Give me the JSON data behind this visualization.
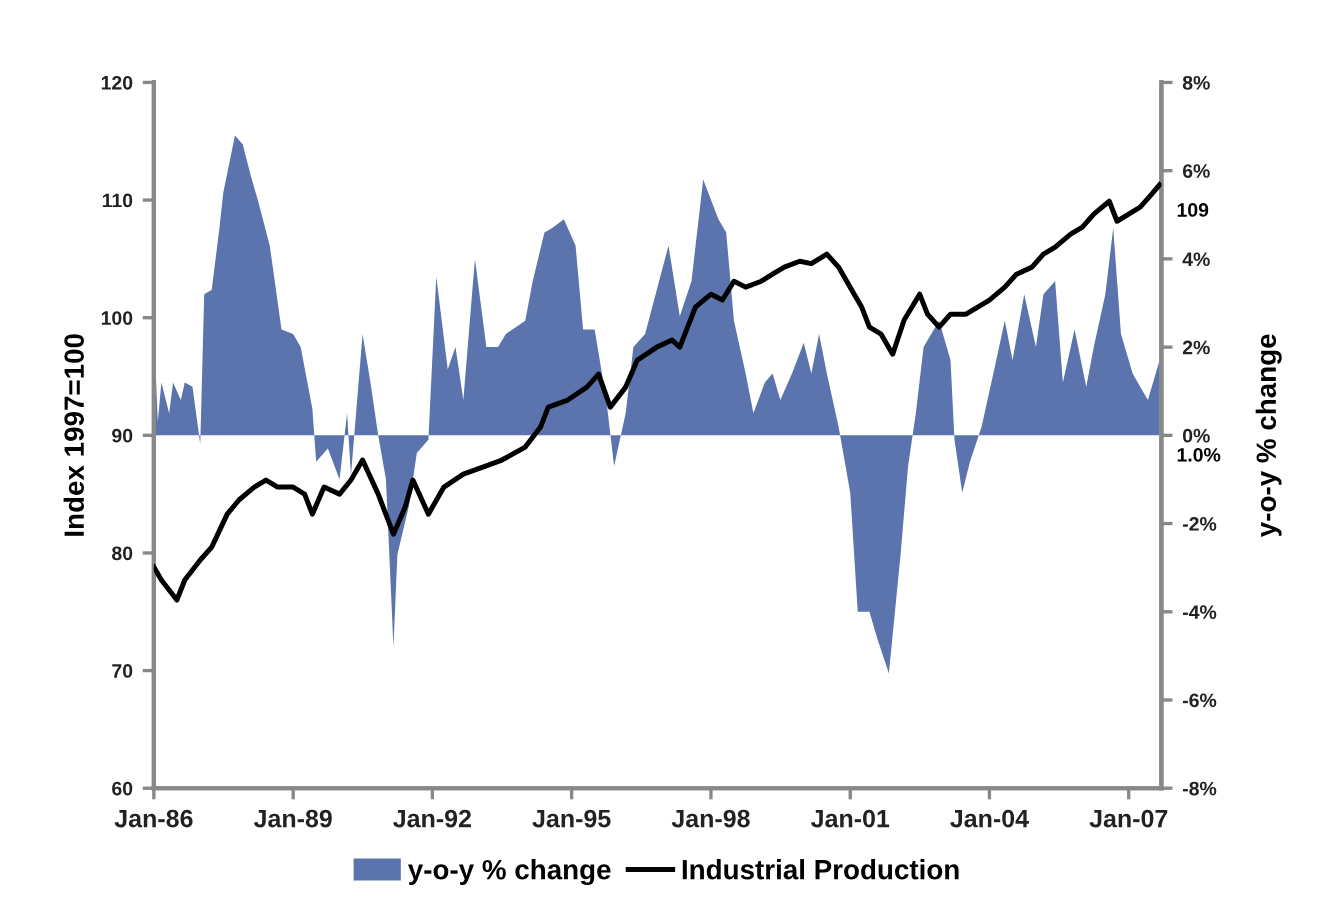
{
  "chart_data": {
    "type": "line",
    "ylabel": "Index 1997=100",
    "y2label": "y-o-y % change",
    "series": [
      {
        "name": "y-o-y % change",
        "type": "area",
        "axis": "y2",
        "color": "#5b74ad",
        "x": [
          "1986-01",
          "1986-02",
          "1986-03",
          "1986-05",
          "1986-06",
          "1986-08",
          "1986-09",
          "1986-11",
          "1987-01",
          "1987-02",
          "1987-04",
          "1987-06",
          "1987-07",
          "1987-10",
          "1987-12",
          "1988-02",
          "1988-04",
          "1988-07",
          "1988-10",
          "1989-01",
          "1989-03",
          "1989-06",
          "1989-07",
          "1989-10",
          "1990-01",
          "1990-03",
          "1990-04",
          "1990-07",
          "1990-09",
          "1990-11",
          "1991-01",
          "1991-03",
          "1991-04",
          "1991-07",
          "1991-09",
          "1991-12",
          "1992-02",
          "1992-05",
          "1992-07",
          "1992-09",
          "1992-12",
          "1993-03",
          "1993-06",
          "1993-08",
          "1994-01",
          "1994-03",
          "1994-06",
          "1994-08",
          "1994-11",
          "1995-02",
          "1995-04",
          "1995-07",
          "1995-10",
          "1995-12",
          "1996-03",
          "1996-05",
          "1996-08",
          "1996-11",
          "1997-02",
          "1997-05",
          "1997-08",
          "1997-11",
          "1998-03",
          "1998-05",
          "1998-07",
          "1998-10",
          "1998-12",
          "1999-03",
          "1999-05",
          "1999-07",
          "1999-10",
          "2000-01",
          "2000-03",
          "2000-05",
          "2000-07",
          "2000-10",
          "2001-01",
          "2001-03",
          "2001-06",
          "2001-08",
          "2001-11",
          "2002-02",
          "2002-04",
          "2002-06",
          "2002-08",
          "2002-12",
          "2003-03",
          "2003-04",
          "2003-06",
          "2003-08",
          "2003-11",
          "2004-02",
          "2004-05",
          "2004-07",
          "2004-10",
          "2005-01",
          "2005-03",
          "2005-06",
          "2005-08",
          "2005-11",
          "2006-02",
          "2006-04",
          "2006-07",
          "2006-09",
          "2006-11",
          "2007-02",
          "2007-04",
          "2007-06",
          "2007-09"
        ],
        "values": [
          2.4,
          0.3,
          1.2,
          0.5,
          1.2,
          0.8,
          1.2,
          1.1,
          -0.2,
          3.2,
          3.3,
          4.7,
          5.5,
          6.8,
          6.6,
          5.9,
          5.3,
          4.3,
          2.4,
          2.3,
          2.0,
          0.6,
          -0.6,
          -0.3,
          -1.0,
          0.5,
          -0.9,
          2.3,
          1.2,
          0,
          -1.0,
          -4.8,
          -2.7,
          -1.6,
          -0.4,
          -0.1,
          3.6,
          1.5,
          2.0,
          0.8,
          4.0,
          2.0,
          2.0,
          2.3,
          2.6,
          3.5,
          4.6,
          4.7,
          4.9,
          4.3,
          2.4,
          2.4,
          0.8,
          -0.7,
          0.5,
          2.0,
          2.3,
          3.3,
          4.3,
          2.7,
          3.5,
          5.8,
          4.9,
          4.6,
          2.6,
          1.4,
          0.5,
          1.2,
          1.4,
          0.8,
          1.4,
          2.1,
          1.4,
          2.3,
          1.4,
          0.2,
          -1.3,
          -4.0,
          -4.0,
          -4.6,
          -5.4,
          -2.7,
          -0.7,
          0.5,
          2.0,
          2.6,
          1.7,
          -0.1,
          -1.3,
          -0.6,
          0.2,
          1.4,
          2.6,
          1.7,
          3.2,
          2.0,
          3.2,
          3.5,
          1.2,
          2.4,
          1.1,
          2.0,
          3.2,
          4.7,
          2.3,
          1.4,
          1.1,
          0.8,
          1.7
        ]
      },
      {
        "name": "Industrial Production",
        "color": "#000000",
        "x": [
          "1986-01",
          "1986-03",
          "1986-07",
          "1986-09",
          "1987-01",
          "1987-04",
          "1987-08",
          "1987-11",
          "1988-03",
          "1988-06",
          "1988-09",
          "1989-01",
          "1989-04",
          "1989-06",
          "1989-09",
          "1990-01",
          "1990-04",
          "1990-07",
          "1990-11",
          "1991-03",
          "1991-06",
          "1991-08",
          "1991-12",
          "1992-04",
          "1992-09",
          "1993-02",
          "1993-07",
          "1994-01",
          "1994-05",
          "1994-07",
          "1994-12",
          "1995-05",
          "1995-08",
          "1995-11",
          "1996-03",
          "1996-06",
          "1996-11",
          "1997-03",
          "1997-05",
          "1997-09",
          "1998-01",
          "1998-04",
          "1998-07",
          "1998-10",
          "1999-02",
          "1999-05",
          "1999-08",
          "1999-12",
          "2000-03",
          "2000-07",
          "2000-10",
          "2001-02",
          "2001-04",
          "2001-06",
          "2001-09",
          "2001-12",
          "2002-03",
          "2002-07",
          "2002-09",
          "2002-12",
          "2003-03",
          "2003-07",
          "2003-10",
          "2004-01",
          "2004-05",
          "2004-08",
          "2004-12",
          "2005-03",
          "2005-06",
          "2005-10",
          "2006-01",
          "2006-04",
          "2006-08",
          "2006-10",
          "2007-01",
          "2007-04",
          "2007-07",
          "2007-09"
        ],
        "values": [
          78.8,
          77.7,
          76.0,
          77.7,
          79.4,
          80.5,
          83.3,
          84.5,
          85.6,
          86.2,
          85.6,
          85.6,
          85.0,
          83.3,
          85.6,
          85.0,
          86.2,
          87.9,
          85.0,
          81.6,
          83.9,
          86.2,
          83.3,
          85.6,
          86.7,
          87.3,
          87.9,
          89.0,
          90.7,
          92.4,
          93.0,
          94.1,
          95.2,
          92.4,
          94.1,
          96.4,
          97.5,
          98.1,
          97.5,
          100.9,
          102.0,
          101.5,
          103.1,
          102.6,
          103.1,
          103.7,
          104.3,
          104.8,
          104.6,
          105.4,
          104.3,
          102.0,
          100.9,
          99.2,
          98.6,
          96.9,
          99.8,
          102.0,
          100.3,
          99.2,
          100.3,
          100.3,
          100.9,
          101.5,
          102.6,
          103.7,
          104.3,
          105.4,
          106.0,
          107.1,
          107.7,
          108.8,
          109.9,
          108.2,
          108.8,
          109.4,
          110.5,
          111.3
        ]
      }
    ],
    "xlim": [
      "1986-01-01",
      "2007-09-15"
    ],
    "xticks": [
      {
        "value": "1986-01-01",
        "label": "Jan-86"
      },
      {
        "value": "1989-01-01",
        "label": "Jan-89"
      },
      {
        "value": "1992-01-01",
        "label": "Jan-92"
      },
      {
        "value": "1995-01-01",
        "label": "Jan-95"
      },
      {
        "value": "1998-01-01",
        "label": "Jan-98"
      },
      {
        "value": "2001-01-01",
        "label": "Jan-01"
      },
      {
        "value": "2004-01-01",
        "label": "Jan-04"
      },
      {
        "value": "2007-01-01",
        "label": "Jan-07"
      }
    ],
    "ylim": [
      60,
      120
    ],
    "yticks": [
      60,
      70,
      80,
      90,
      100,
      110,
      120
    ],
    "y2lim": [
      -8,
      8
    ],
    "y2ticks": [
      {
        "value": -8,
        "label": "-8%"
      },
      {
        "value": -6,
        "label": "-6%"
      },
      {
        "value": -4,
        "label": "-4%"
      },
      {
        "value": -2,
        "label": "-2%"
      },
      {
        "value": 0,
        "label": "0%"
      },
      {
        "value": 2,
        "label": "2%"
      },
      {
        "value": 4,
        "label": "4%"
      },
      {
        "value": 6,
        "label": "6%"
      },
      {
        "value": 8,
        "label": "8%"
      }
    ],
    "annotations": [
      "109",
      "1.0%"
    ],
    "legend": "bottom",
    "grid": false
  }
}
